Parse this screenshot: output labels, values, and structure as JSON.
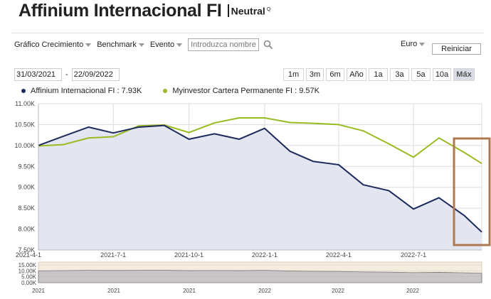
{
  "header": {
    "title": "Affinium Internacional FI",
    "badge": "Neutral",
    "badge_mark": "Q"
  },
  "toolbar": {
    "growth_label": "Gráfico Crecimiento",
    "benchmark_label": "Benchmark",
    "event_label": "Evento",
    "search_placeholder": "Introduzca nombre",
    "currency": "Euro",
    "reset_label": "Reiniciar"
  },
  "dates": {
    "start": "31/03/2021",
    "separator": "-",
    "end": "22/09/2022"
  },
  "ranges": [
    "1m",
    "3m",
    "6m",
    "Año",
    "1a",
    "3a",
    "5a",
    "10a",
    "Máx"
  ],
  "active_range": "Máx",
  "legend": [
    {
      "label": "Affinium Internacional FI : 7.93K",
      "color": "#1c2a5c"
    },
    {
      "label": "Myinvestor Cartera Permanente FI : 9.57K",
      "color": "#99bb22"
    }
  ],
  "chart_data": {
    "type": "area",
    "x": [
      "2021-04-01",
      "2021-05-01",
      "2021-06-01",
      "2021-07-01",
      "2021-08-01",
      "2021-09-01",
      "2021-10-01",
      "2021-11-01",
      "2021-12-01",
      "2022-01-01",
      "2022-02-01",
      "2022-03-01",
      "2022-04-01",
      "2022-05-01",
      "2022-06-01",
      "2022-07-01",
      "2022-08-01",
      "2022-09-01",
      "2022-09-22"
    ],
    "x_ticks": [
      "2021-4-1",
      "2021-7-1",
      "2021-10-1",
      "2022-1-1",
      "2022-4-1",
      "2022-7-1"
    ],
    "y_ticks": [
      "7.50K",
      "8.00K",
      "8.50K",
      "9.00K",
      "9.50K",
      "10.00K",
      "10.50K",
      "11.00K"
    ],
    "ylim": [
      7500,
      11000
    ],
    "series": [
      {
        "name": "Affinium Internacional FI",
        "color": "#1c2a5c",
        "values": [
          10000,
          10220,
          10440,
          10300,
          10440,
          10480,
          10150,
          10280,
          10150,
          10410,
          9860,
          9620,
          9540,
          9060,
          8920,
          8480,
          8750,
          8320,
          7930
        ]
      },
      {
        "name": "Myinvestor Cartera Permanente FI",
        "color": "#99bb22",
        "values": [
          9990,
          10020,
          10180,
          10210,
          10470,
          10490,
          10310,
          10540,
          10660,
          10660,
          10550,
          10530,
          10500,
          10350,
          10040,
          9720,
          10180,
          9830,
          9570
        ]
      }
    ],
    "navigator": {
      "y_ticks": [
        "15.00K",
        "10.00K",
        "5.00K",
        "0.00K"
      ],
      "x_ticks": [
        "2021",
        "2021",
        "2021",
        "2022",
        "2022",
        "2022"
      ]
    },
    "grid": true
  }
}
